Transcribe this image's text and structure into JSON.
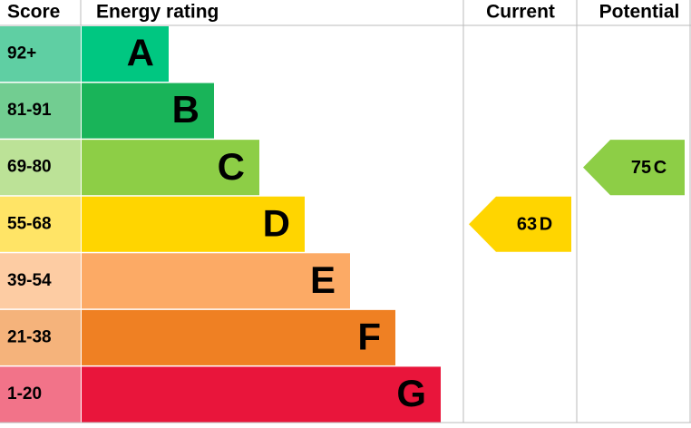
{
  "chart_data": {
    "type": "epc",
    "headers": {
      "score": "Score",
      "rating": "Energy rating",
      "current": "Current",
      "potential": "Potential"
    },
    "bands": [
      {
        "score": "92+",
        "letter": "A",
        "color": "#00c781",
        "score_color": "#5fcfa3"
      },
      {
        "score": "81-91",
        "letter": "B",
        "color": "#19b459",
        "score_color": "#72cd91"
      },
      {
        "score": "69-80",
        "letter": "C",
        "color": "#8dce46",
        "score_color": "#bce297"
      },
      {
        "score": "55-68",
        "letter": "D",
        "color": "#ffd500",
        "score_color": "#ffe466"
      },
      {
        "score": "39-54",
        "letter": "E",
        "color": "#fcaa65",
        "score_color": "#fdcca3"
      },
      {
        "score": "21-38",
        "letter": "F",
        "color": "#ef8023",
        "score_color": "#f5b37b"
      },
      {
        "score": "1-20",
        "letter": "G",
        "color": "#e9153b",
        "score_color": "#f27389"
      }
    ],
    "current": {
      "value": 63,
      "rating": "D"
    },
    "potential": {
      "value": 75,
      "rating": "C"
    }
  }
}
